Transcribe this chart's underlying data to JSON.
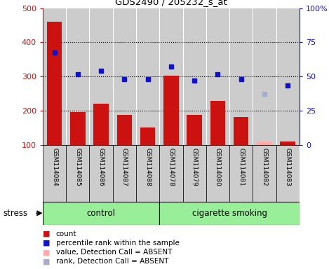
{
  "title": "GDS2490 / 205232_s_at",
  "samples": [
    "GSM114084",
    "GSM114085",
    "GSM114086",
    "GSM114087",
    "GSM114088",
    "GSM114078",
    "GSM114079",
    "GSM114080",
    "GSM114081",
    "GSM114082",
    "GSM114083"
  ],
  "count_values": [
    460,
    197,
    222,
    188,
    151,
    303,
    188,
    229,
    183,
    null,
    110
  ],
  "count_absent": [
    null,
    null,
    null,
    null,
    null,
    null,
    null,
    null,
    null,
    110,
    null
  ],
  "rank_values": [
    370,
    308,
    318,
    293,
    293,
    330,
    288,
    308,
    293,
    null,
    275
  ],
  "rank_absent": [
    null,
    null,
    null,
    null,
    null,
    null,
    null,
    null,
    null,
    250,
    null
  ],
  "ylim_left": [
    100,
    500
  ],
  "ylim_right": [
    0,
    100
  ],
  "yticks_left": [
    100,
    200,
    300,
    400,
    500
  ],
  "yticks_right": [
    0,
    25,
    50,
    75,
    100
  ],
  "ytick_labels_right": [
    "0",
    "25",
    "50",
    "75",
    "100%"
  ],
  "bar_color": "#cc1111",
  "bar_absent_color": "#ffaaaa",
  "dot_color": "#1111cc",
  "dot_absent_color": "#aaaacc",
  "control_label": "control",
  "smoking_label": "cigarette smoking",
  "stress_label": "stress",
  "group_bg_color": "#99ee99",
  "bar_bg_color": "#cccccc",
  "n_control": 5,
  "n_smoking": 6
}
